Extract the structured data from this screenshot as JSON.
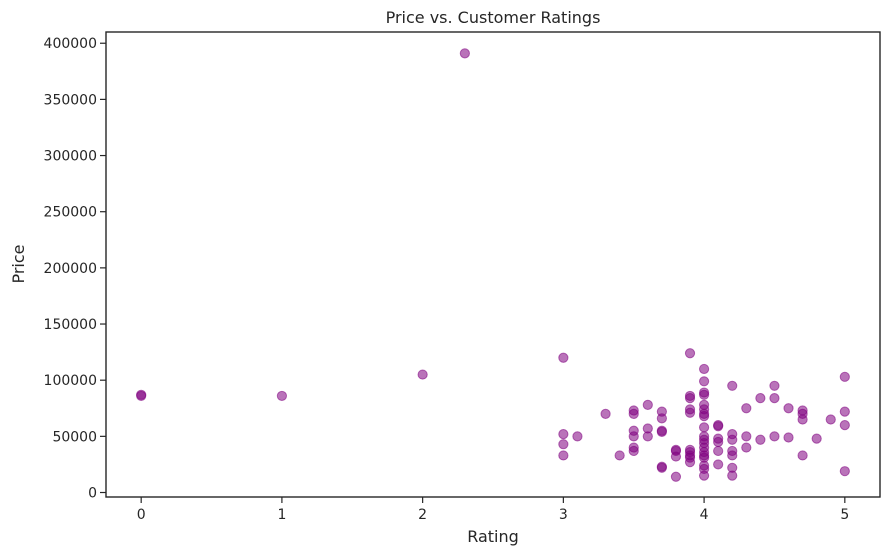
{
  "chart_data": {
    "type": "scatter",
    "title": "Price vs. Customer Ratings",
    "xlabel": "Rating",
    "ylabel": "Price",
    "xlim": [
      -0.25,
      5.25
    ],
    "ylim": [
      -4000,
      410000
    ],
    "xticks": [
      0,
      1,
      2,
      3,
      4,
      5
    ],
    "xtick_labels": [
      "0",
      "1",
      "2",
      "3",
      "4",
      "5"
    ],
    "yticks": [
      0,
      50000,
      100000,
      150000,
      200000,
      250000,
      300000,
      350000,
      400000
    ],
    "ytick_labels": [
      "0",
      "50000",
      "100000",
      "150000",
      "200000",
      "250000",
      "300000",
      "350000",
      "400000"
    ],
    "grid": false,
    "marker_color": "#800080",
    "marker_opacity": 0.55,
    "points": [
      {
        "x": 0,
        "y": 87000
      },
      {
        "x": 0,
        "y": 86000
      },
      {
        "x": 1,
        "y": 86000
      },
      {
        "x": 2,
        "y": 105000
      },
      {
        "x": 2.3,
        "y": 391000
      },
      {
        "x": 3,
        "y": 120000
      },
      {
        "x": 3,
        "y": 52000
      },
      {
        "x": 3,
        "y": 43000
      },
      {
        "x": 3,
        "y": 33000
      },
      {
        "x": 3.1,
        "y": 50000
      },
      {
        "x": 3.3,
        "y": 70000
      },
      {
        "x": 3.4,
        "y": 33000
      },
      {
        "x": 3.5,
        "y": 73000
      },
      {
        "x": 3.5,
        "y": 70000
      },
      {
        "x": 3.5,
        "y": 55000
      },
      {
        "x": 3.5,
        "y": 50000
      },
      {
        "x": 3.5,
        "y": 40000
      },
      {
        "x": 3.5,
        "y": 37000
      },
      {
        "x": 3.6,
        "y": 78000
      },
      {
        "x": 3.6,
        "y": 57000
      },
      {
        "x": 3.6,
        "y": 50000
      },
      {
        "x": 3.7,
        "y": 72000
      },
      {
        "x": 3.7,
        "y": 66000
      },
      {
        "x": 3.7,
        "y": 55000
      },
      {
        "x": 3.7,
        "y": 54000
      },
      {
        "x": 3.7,
        "y": 23000
      },
      {
        "x": 3.7,
        "y": 22000
      },
      {
        "x": 3.8,
        "y": 38000
      },
      {
        "x": 3.8,
        "y": 37000
      },
      {
        "x": 3.8,
        "y": 32000
      },
      {
        "x": 3.8,
        "y": 14000
      },
      {
        "x": 3.9,
        "y": 124000
      },
      {
        "x": 3.9,
        "y": 86000
      },
      {
        "x": 3.9,
        "y": 84000
      },
      {
        "x": 3.9,
        "y": 74000
      },
      {
        "x": 3.9,
        "y": 71000
      },
      {
        "x": 3.9,
        "y": 38000
      },
      {
        "x": 3.9,
        "y": 36000
      },
      {
        "x": 3.9,
        "y": 33000
      },
      {
        "x": 3.9,
        "y": 31000
      },
      {
        "x": 3.9,
        "y": 27000
      },
      {
        "x": 4,
        "y": 110000
      },
      {
        "x": 4,
        "y": 99000
      },
      {
        "x": 4,
        "y": 89000
      },
      {
        "x": 4,
        "y": 87000
      },
      {
        "x": 4,
        "y": 78000
      },
      {
        "x": 4,
        "y": 74000
      },
      {
        "x": 4,
        "y": 70000
      },
      {
        "x": 4,
        "y": 68000
      },
      {
        "x": 4,
        "y": 58000
      },
      {
        "x": 4,
        "y": 50000
      },
      {
        "x": 4,
        "y": 47000
      },
      {
        "x": 4,
        "y": 44000
      },
      {
        "x": 4,
        "y": 40000
      },
      {
        "x": 4,
        "y": 36000
      },
      {
        "x": 4,
        "y": 33000
      },
      {
        "x": 4,
        "y": 31000
      },
      {
        "x": 4,
        "y": 24000
      },
      {
        "x": 4,
        "y": 21000
      },
      {
        "x": 4,
        "y": 15000
      },
      {
        "x": 4.1,
        "y": 60000
      },
      {
        "x": 4.1,
        "y": 59000
      },
      {
        "x": 4.1,
        "y": 48000
      },
      {
        "x": 4.1,
        "y": 45000
      },
      {
        "x": 4.1,
        "y": 37000
      },
      {
        "x": 4.1,
        "y": 25000
      },
      {
        "x": 4.2,
        "y": 95000
      },
      {
        "x": 4.2,
        "y": 52000
      },
      {
        "x": 4.2,
        "y": 47000
      },
      {
        "x": 4.2,
        "y": 37000
      },
      {
        "x": 4.2,
        "y": 33000
      },
      {
        "x": 4.2,
        "y": 22000
      },
      {
        "x": 4.2,
        "y": 15000
      },
      {
        "x": 4.3,
        "y": 75000
      },
      {
        "x": 4.3,
        "y": 50000
      },
      {
        "x": 4.3,
        "y": 40000
      },
      {
        "x": 4.4,
        "y": 84000
      },
      {
        "x": 4.4,
        "y": 47000
      },
      {
        "x": 4.5,
        "y": 95000
      },
      {
        "x": 4.5,
        "y": 84000
      },
      {
        "x": 4.5,
        "y": 50000
      },
      {
        "x": 4.6,
        "y": 75000
      },
      {
        "x": 4.6,
        "y": 49000
      },
      {
        "x": 4.7,
        "y": 73000
      },
      {
        "x": 4.7,
        "y": 70000
      },
      {
        "x": 4.7,
        "y": 65000
      },
      {
        "x": 4.7,
        "y": 33000
      },
      {
        "x": 4.8,
        "y": 48000
      },
      {
        "x": 4.9,
        "y": 65000
      },
      {
        "x": 5,
        "y": 103000
      },
      {
        "x": 5,
        "y": 72000
      },
      {
        "x": 5,
        "y": 60000
      },
      {
        "x": 5,
        "y": 19000
      }
    ]
  }
}
